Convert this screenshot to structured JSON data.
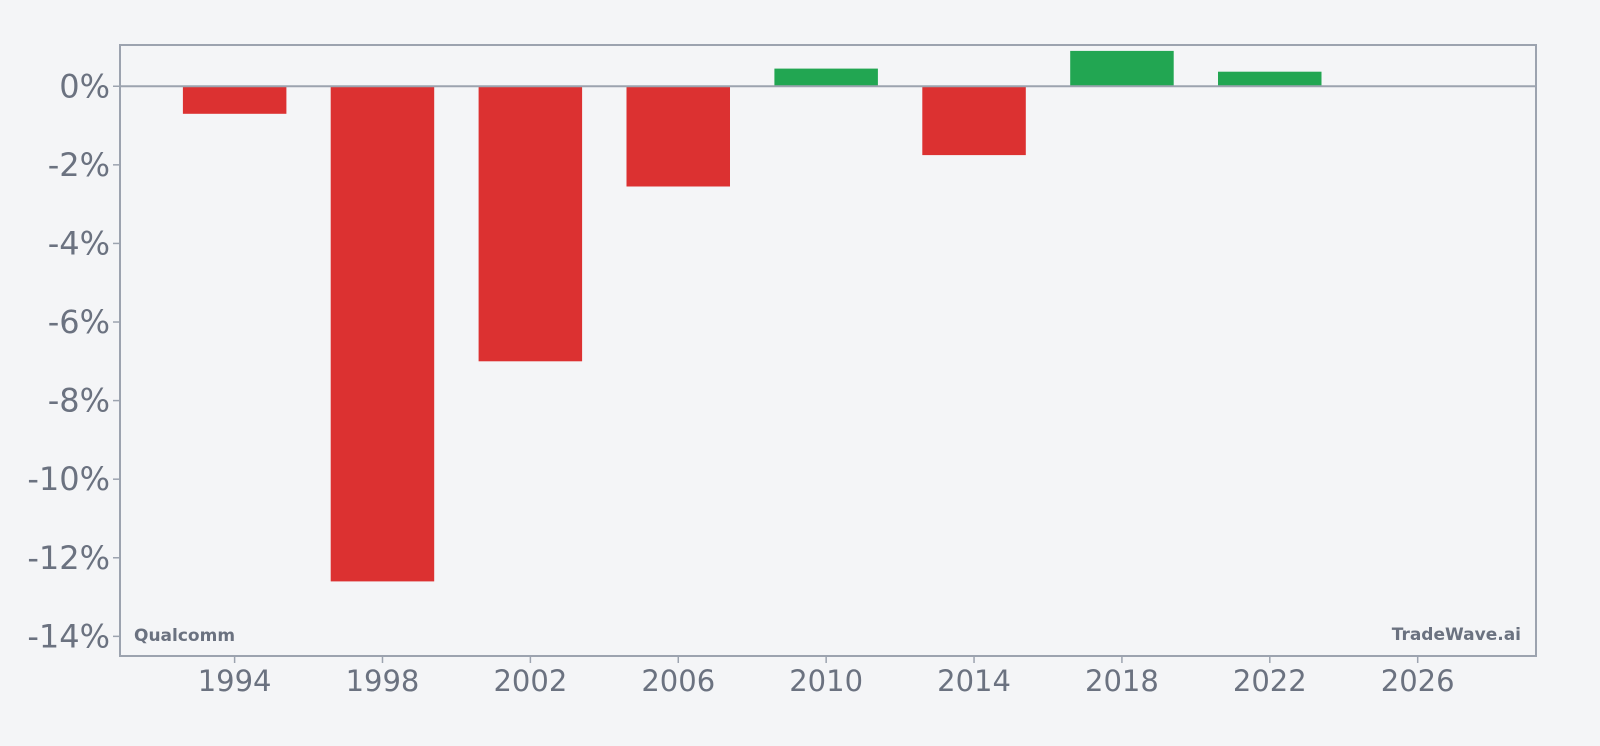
{
  "chart_data": {
    "type": "bar",
    "x": [
      1994,
      1998,
      2002,
      2006,
      2010,
      2014,
      2018,
      2022
    ],
    "values": [
      -0.7,
      -12.6,
      -7.0,
      -2.55,
      0.45,
      -1.75,
      0.9,
      0.37
    ],
    "ylim": [
      -14.5,
      1.05
    ],
    "xlim": [
      1990.9,
      2029.2
    ],
    "yticks": [
      0,
      -2,
      -4,
      -6,
      -8,
      -10,
      -12,
      -14
    ],
    "ytick_labels": [
      "0%",
      "-2%",
      "-4%",
      "-6%",
      "-8%",
      "-10%",
      "-12%",
      "-14%"
    ],
    "xticks": [
      1994,
      1998,
      2002,
      2006,
      2010,
      2014,
      2018,
      2022,
      2026
    ],
    "xtick_labels": [
      "1994",
      "1998",
      "2002",
      "2006",
      "2010",
      "2014",
      "2018",
      "2022",
      "2026"
    ],
    "bar_width_years": 2.8,
    "colors": {
      "negative": "#dc3131",
      "positive": "#22a652",
      "axis": "#9ca3af",
      "text": "#6b7280"
    },
    "grid": false,
    "xlabel": "",
    "ylabel": "",
    "title": ""
  },
  "watermarks": {
    "left": "Qualcomm",
    "right": "TradeWave.ai"
  }
}
